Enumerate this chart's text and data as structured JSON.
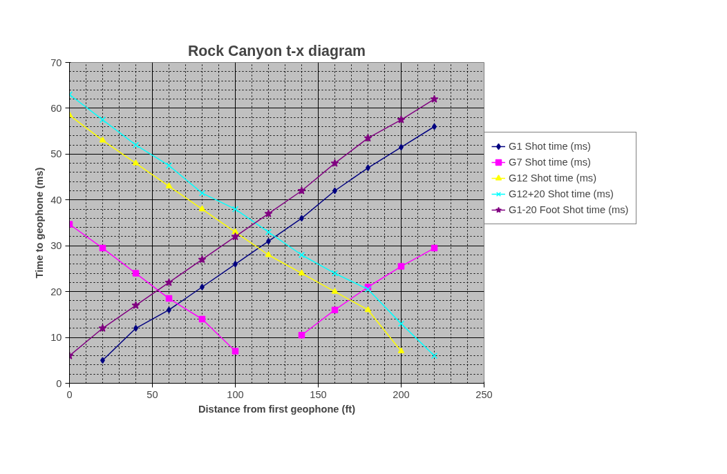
{
  "chart_data": {
    "type": "line",
    "title": "Rock Canyon t-x diagram",
    "xlabel": "Distance from first geophone (ft)",
    "ylabel": "Time to geophone (ms)",
    "x": [
      0,
      20,
      40,
      60,
      80,
      100,
      120,
      140,
      160,
      180,
      200,
      220
    ],
    "series": [
      {
        "name": "G1 Shot time (ms)",
        "color": "#000080",
        "marker": "diamond",
        "values": [
          null,
          5,
          12,
          16,
          21,
          26,
          31,
          36,
          42,
          47,
          51.5,
          56
        ]
      },
      {
        "name": "G7 Shot time (ms)",
        "color": "#ff00ff",
        "marker": "square",
        "values": [
          34.7,
          29.5,
          24,
          18.5,
          14,
          7,
          null,
          10.5,
          16,
          21,
          25.5,
          29.5
        ]
      },
      {
        "name": "G12 Shot time (ms)",
        "color": "#ffff00",
        "marker": "triangle",
        "values": [
          58.5,
          53,
          48,
          43,
          38,
          33,
          28,
          24,
          20,
          16,
          7,
          null
        ]
      },
      {
        "name": "G12+20 Shot time (ms)",
        "color": "#00ffff",
        "marker": "cross",
        "values": [
          63,
          57.5,
          52,
          47.5,
          41.5,
          38,
          33,
          28,
          24,
          20.5,
          13,
          6
        ]
      },
      {
        "name": "G1-20 Foot Shot time (ms)",
        "color": "#800080",
        "marker": "star",
        "values": [
          6,
          12,
          17,
          22,
          27,
          32,
          37,
          42,
          48,
          53.5,
          57.5,
          62
        ]
      }
    ],
    "xlim": [
      0,
      250
    ],
    "xticks": [
      0,
      50,
      100,
      150,
      200,
      250
    ],
    "ylim": [
      0,
      70
    ],
    "yticks": [
      0,
      10,
      20,
      30,
      40,
      50,
      60,
      70
    ],
    "grid": true,
    "legend": "right",
    "line_style": "solid"
  }
}
